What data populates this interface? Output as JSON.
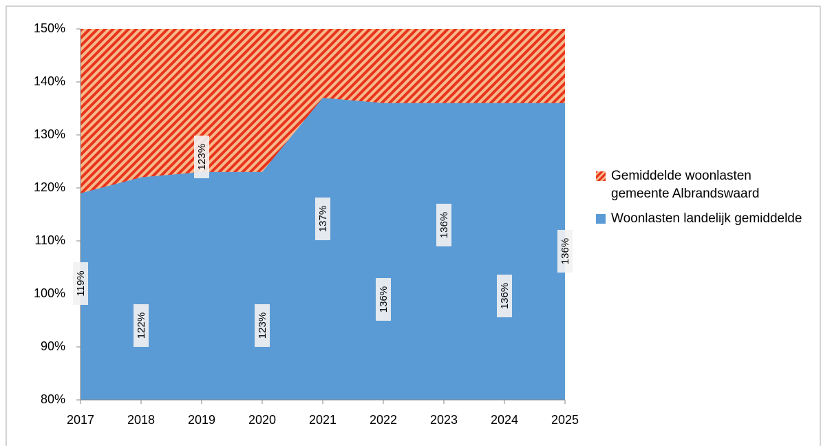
{
  "chart_data": {
    "type": "area",
    "categories": [
      "2017",
      "2018",
      "2019",
      "2020",
      "2021",
      "2022",
      "2023",
      "2024",
      "2025"
    ],
    "series": [
      {
        "name": "Gemiddelde woonlasten gemeente Albrandswaard",
        "color": "#e8341c",
        "pattern": "hatch",
        "values": [
          150,
          150,
          150,
          150,
          150,
          150,
          150,
          150,
          150
        ]
      },
      {
        "name": "Woonlasten landelijk gemiddelde",
        "color": "#5b9bd5",
        "values": [
          119,
          122,
          123,
          123,
          137,
          136,
          136,
          136,
          136
        ],
        "value_labels": [
          "119%",
          "122%",
          "123%",
          "123%",
          "137%",
          "136%",
          "136%",
          "136%",
          "136%"
        ]
      }
    ],
    "ylim": [
      80,
      150
    ],
    "yticks": [
      {
        "value": 80,
        "label": "80%"
      },
      {
        "value": 90,
        "label": "90%"
      },
      {
        "value": 100,
        "label": "100%"
      },
      {
        "value": 110,
        "label": "110%"
      },
      {
        "value": 120,
        "label": "120%"
      },
      {
        "value": 130,
        "label": "130%"
      },
      {
        "value": 140,
        "label": "140%"
      },
      {
        "value": 150,
        "label": "150%"
      }
    ],
    "legend_position": "right"
  }
}
